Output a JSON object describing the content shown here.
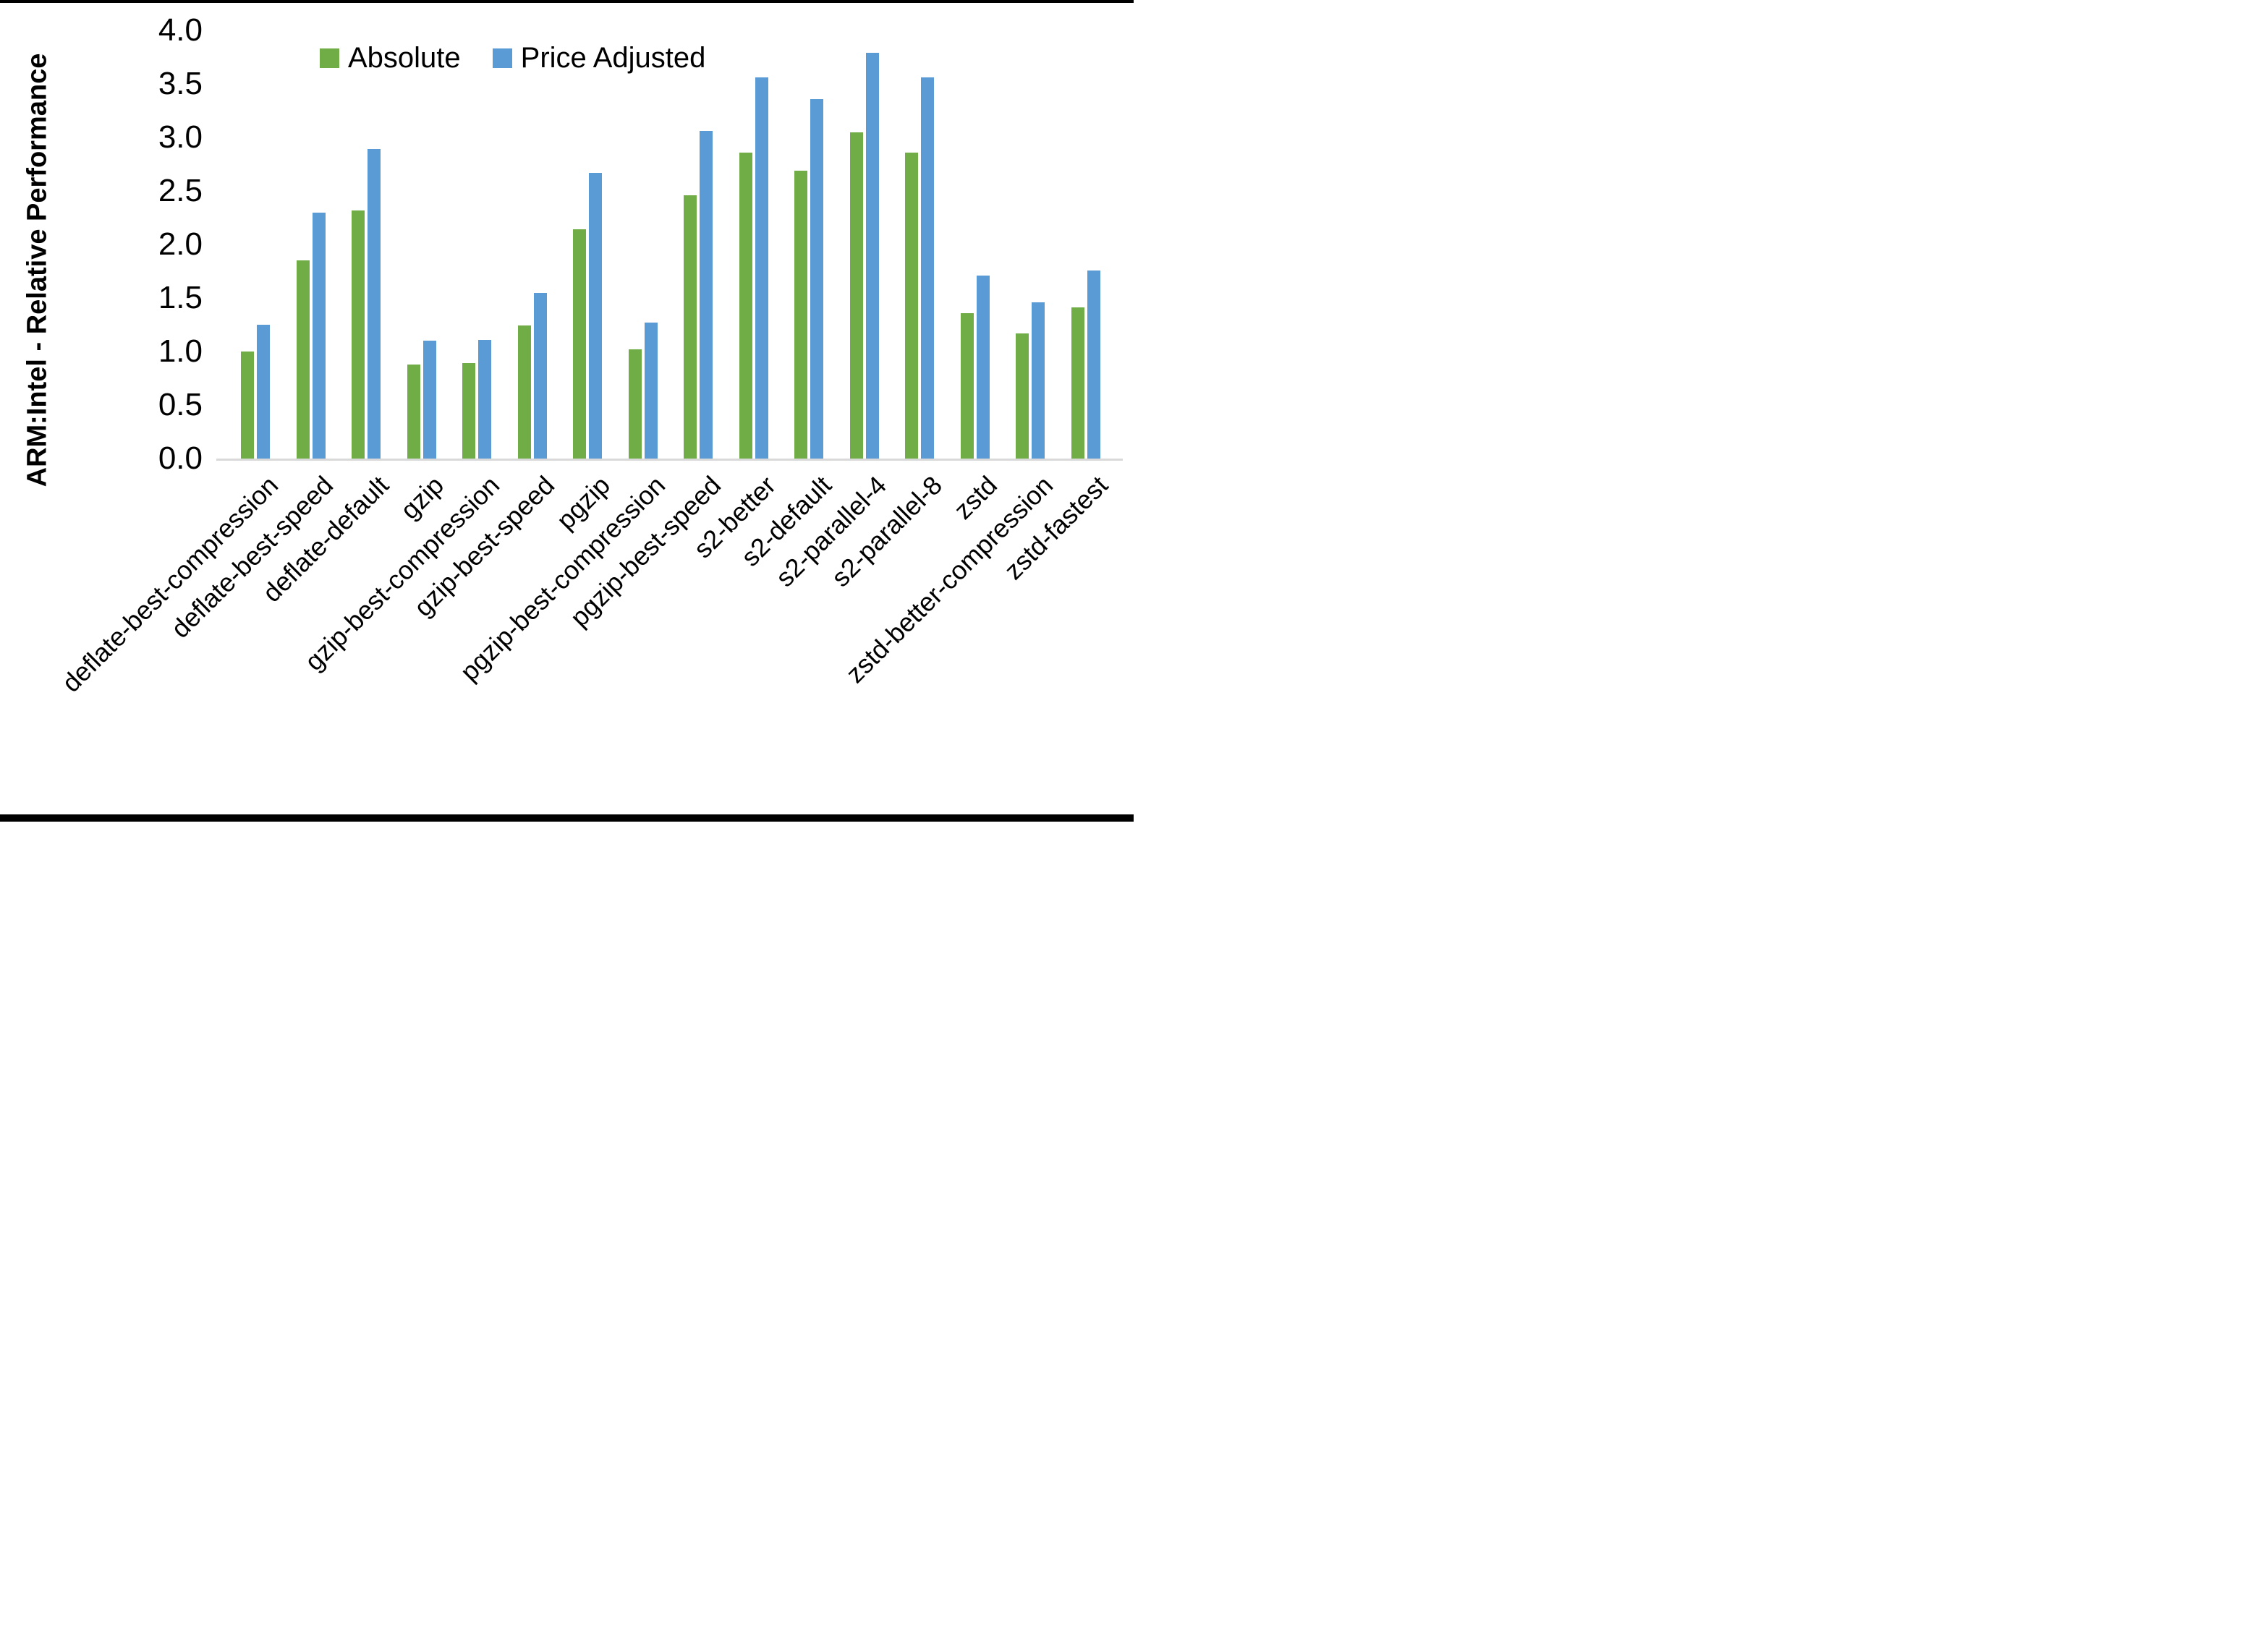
{
  "chart_data": {
    "type": "bar",
    "title": "",
    "xlabel": "",
    "ylabel": "ARM:Intel - Relative Performance",
    "ylim": [
      0.0,
      4.0
    ],
    "ytick_step": 0.5,
    "yticks": [
      "0.0",
      "0.5",
      "1.0",
      "1.5",
      "2.0",
      "2.5",
      "3.0",
      "3.5",
      "4.0"
    ],
    "grid": false,
    "legend_position": "top-center",
    "categories": [
      "deflate-best-compression",
      "deflate-best-speed",
      "deflate-default",
      "gzip",
      "gzip-best-compression",
      "gzip-best-speed",
      "pgzip",
      "pgzip-best-compression",
      "pgzip-best-speed",
      "s2-better",
      "s2-default",
      "s2-parallel-4",
      "s2-parallel-8",
      "zstd",
      "zstd-better-compression",
      "zstd-fastest"
    ],
    "series": [
      {
        "name": "Absolute",
        "color": "#70AD47",
        "values": [
          1.0,
          1.85,
          2.32,
          0.88,
          0.89,
          1.24,
          2.14,
          1.02,
          2.46,
          2.86,
          2.69,
          3.05,
          2.86,
          1.36,
          1.17,
          1.41
        ]
      },
      {
        "name": "Price Adjusted",
        "color": "#5B9BD5",
        "values": [
          1.25,
          2.3,
          2.89,
          1.1,
          1.11,
          1.55,
          2.67,
          1.27,
          3.06,
          3.56,
          3.36,
          3.79,
          3.56,
          1.71,
          1.46,
          1.76
        ]
      }
    ]
  },
  "colors": {
    "axis_line": "#d9d9d9",
    "text": "#000000",
    "background": "#ffffff",
    "frame_border": "#000000"
  }
}
